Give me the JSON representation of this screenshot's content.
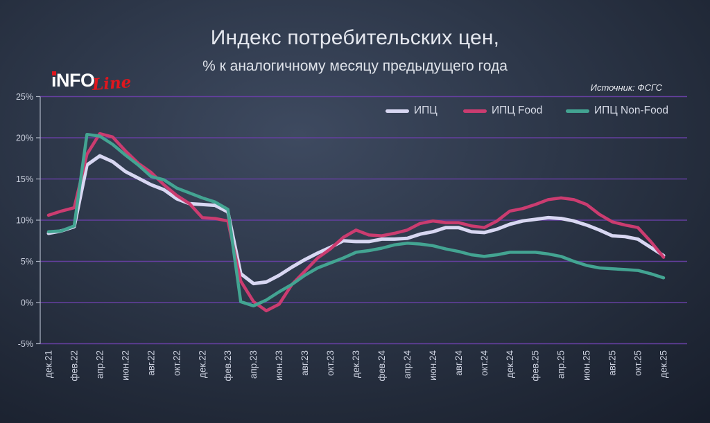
{
  "header": {
    "title": "Индекс потребительских цен,",
    "subtitle": "% к аналогичному месяцу предыдущего года",
    "source": "Источник: ФСГС",
    "logo": {
      "part1": "iNFO",
      "part2": "Line"
    }
  },
  "chart_data": {
    "type": "line",
    "title": "Индекс потребительских цен, % к аналогичному месяцу предыдущего года",
    "xlabel": "",
    "ylabel": "",
    "ylim": [
      -5,
      25
    ],
    "ytick_step": 5,
    "ytick_labels": [
      "25%",
      "20%",
      "15%",
      "10%",
      "5%",
      "0%",
      "-5%"
    ],
    "xtick_every": 2,
    "grid": "horizontal",
    "gridline_color": "#653fa0",
    "legend_position": "top",
    "categories": [
      "дек.21",
      "янв.22",
      "фев.22",
      "мар.22",
      "апр.22",
      "май.22",
      "июн.22",
      "июл.22",
      "авг.22",
      "сен.22",
      "окт.22",
      "ноя.22",
      "дек.22",
      "янв.23",
      "фев.23",
      "мар.23",
      "апр.23",
      "май.23",
      "июн.23",
      "июл.23",
      "авг.23",
      "сен.23",
      "окт.23",
      "ноя.23",
      "дек.23",
      "янв.24",
      "фев.24",
      "мар.24",
      "апр.24",
      "май.24",
      "июн.24",
      "июл.24",
      "авг.24",
      "сен.24",
      "окт.24",
      "ноя.24",
      "дек.24",
      "янв.25",
      "фев.25",
      "мар.25",
      "апр.25",
      "май.25",
      "июн.25",
      "июл.25",
      "авг.25",
      "сен.25",
      "окт.25",
      "ноя.25",
      "дек.25"
    ],
    "series": [
      {
        "name": "ИПЦ",
        "color": "#d8d7f2",
        "values": [
          8.4,
          8.7,
          9.2,
          16.7,
          17.8,
          17.1,
          15.9,
          15.1,
          14.3,
          13.7,
          12.6,
          12.0,
          11.9,
          11.8,
          11.0,
          3.5,
          2.3,
          2.5,
          3.3,
          4.3,
          5.2,
          6.0,
          6.7,
          7.5,
          7.4,
          7.4,
          7.7,
          7.7,
          7.8,
          8.3,
          8.6,
          9.1,
          9.1,
          8.6,
          8.5,
          8.9,
          9.5,
          9.9,
          10.1,
          10.3,
          10.2,
          9.9,
          9.4,
          8.8,
          8.1,
          8.0,
          7.7,
          6.7,
          5.7
        ]
      },
      {
        "name": "ИПЦ Food",
        "color": "#cb3c70",
        "values": [
          10.6,
          11.1,
          11.5,
          18.0,
          20.5,
          20.1,
          18.4,
          16.9,
          15.8,
          14.3,
          13.0,
          12.0,
          10.3,
          10.2,
          9.9,
          2.6,
          0.1,
          -1.0,
          -0.2,
          2.2,
          3.8,
          5.4,
          6.5,
          7.9,
          8.8,
          8.2,
          8.1,
          8.4,
          8.8,
          9.6,
          9.9,
          9.7,
          9.7,
          9.3,
          9.1,
          9.9,
          11.1,
          11.4,
          11.9,
          12.5,
          12.7,
          12.5,
          11.9,
          10.7,
          9.8,
          9.4,
          9.1,
          7.4,
          5.5
        ]
      },
      {
        "name": "ИПЦ Non-Food",
        "color": "#43a492",
        "values": [
          8.6,
          8.7,
          9.3,
          20.4,
          20.2,
          19.2,
          17.9,
          16.7,
          15.3,
          14.9,
          13.9,
          13.3,
          12.7,
          12.2,
          11.3,
          0.1,
          -0.4,
          0.3,
          1.3,
          2.2,
          3.3,
          4.2,
          4.8,
          5.4,
          6.1,
          6.3,
          6.6,
          7.0,
          7.2,
          7.1,
          6.9,
          6.5,
          6.2,
          5.8,
          5.6,
          5.8,
          6.1,
          6.1,
          6.1,
          5.9,
          5.6,
          5.0,
          4.5,
          4.2,
          4.1,
          4.0,
          3.9,
          3.5,
          3.0
        ]
      }
    ]
  }
}
